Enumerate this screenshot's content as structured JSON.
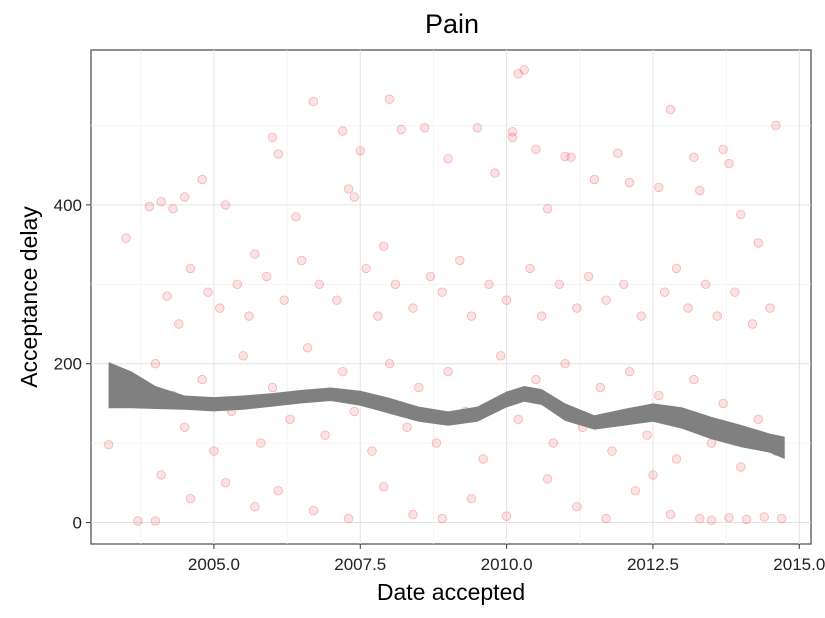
{
  "chart_data": {
    "type": "scatter",
    "title": "Pain",
    "xlabel": "Date accepted",
    "ylabel": "Acceptance delay",
    "xlim": [
      2002.9,
      2015.2
    ],
    "ylim": [
      -27,
      595
    ],
    "x_ticks": [
      2005.0,
      2007.5,
      2010.0,
      2012.5,
      2015.0
    ],
    "x_tick_labels": [
      "2005.0",
      "2007.5",
      "2010.0",
      "2012.5",
      "2015.0"
    ],
    "y_ticks": [
      0,
      200,
      400
    ],
    "y_tick_labels": [
      "0",
      "200",
      "400"
    ],
    "grid": true,
    "legend": "none",
    "point_color": "#e8202a",
    "ribbon_color": "#808080",
    "smooth_band": {
      "x": [
        2003.2,
        2003.6,
        2004.0,
        2004.5,
        2005.0,
        2005.5,
        2006.0,
        2006.5,
        2007.0,
        2007.5,
        2008.0,
        2008.5,
        2009.0,
        2009.5,
        2010.0,
        2010.3,
        2010.6,
        2011.0,
        2011.5,
        2012.0,
        2012.5,
        2013.0,
        2013.5,
        2014.0,
        2014.5,
        2014.75
      ],
      "upper": [
        202,
        190,
        172,
        160,
        158,
        160,
        163,
        167,
        170,
        166,
        157,
        146,
        140,
        146,
        165,
        172,
        168,
        150,
        135,
        143,
        150,
        145,
        133,
        123,
        112,
        108
      ],
      "lower": [
        144,
        144,
        143,
        142,
        140,
        142,
        146,
        150,
        153,
        147,
        137,
        127,
        122,
        127,
        145,
        152,
        148,
        128,
        117,
        122,
        127,
        118,
        105,
        95,
        88,
        80
      ]
    },
    "points": [
      [
        2003.2,
        98
      ],
      [
        2003.5,
        358
      ],
      [
        2003.7,
        2
      ],
      [
        2003.9,
        398
      ],
      [
        2004.0,
        2
      ],
      [
        2004.1,
        404
      ],
      [
        2004.3,
        395
      ],
      [
        2004.5,
        410
      ],
      [
        2004.8,
        432
      ],
      [
        2005.2,
        400
      ],
      [
        2005.7,
        338
      ],
      [
        2006.0,
        485
      ],
      [
        2006.1,
        464
      ],
      [
        2006.4,
        385
      ],
      [
        2006.7,
        530
      ],
      [
        2007.2,
        493
      ],
      [
        2007.3,
        420
      ],
      [
        2007.4,
        410
      ],
      [
        2007.5,
        468
      ],
      [
        2007.9,
        348
      ],
      [
        2008.0,
        533
      ],
      [
        2008.2,
        495
      ],
      [
        2008.6,
        497
      ],
      [
        2009.0,
        458
      ],
      [
        2009.5,
        497
      ],
      [
        2009.8,
        440
      ],
      [
        2010.1,
        492
      ],
      [
        2010.1,
        485
      ],
      [
        2010.2,
        565
      ],
      [
        2010.3,
        570
      ],
      [
        2010.5,
        470
      ],
      [
        2010.7,
        395
      ],
      [
        2011.0,
        461
      ],
      [
        2011.1,
        460
      ],
      [
        2011.5,
        432
      ],
      [
        2011.9,
        465
      ],
      [
        2012.1,
        428
      ],
      [
        2012.6,
        422
      ],
      [
        2012.8,
        520
      ],
      [
        2013.2,
        460
      ],
      [
        2013.3,
        418
      ],
      [
        2013.7,
        470
      ],
      [
        2013.8,
        452
      ],
      [
        2014.0,
        388
      ],
      [
        2014.3,
        352
      ],
      [
        2014.6,
        500
      ],
      [
        2004.2,
        285
      ],
      [
        2004.4,
        250
      ],
      [
        2004.6,
        320
      ],
      [
        2004.9,
        290
      ],
      [
        2005.1,
        270
      ],
      [
        2005.4,
        300
      ],
      [
        2005.6,
        260
      ],
      [
        2005.9,
        310
      ],
      [
        2006.2,
        280
      ],
      [
        2006.5,
        330
      ],
      [
        2006.8,
        300
      ],
      [
        2007.1,
        280
      ],
      [
        2007.6,
        320
      ],
      [
        2007.8,
        260
      ],
      [
        2008.1,
        300
      ],
      [
        2008.4,
        270
      ],
      [
        2008.7,
        310
      ],
      [
        2008.9,
        290
      ],
      [
        2009.2,
        330
      ],
      [
        2009.4,
        260
      ],
      [
        2009.7,
        300
      ],
      [
        2010.0,
        280
      ],
      [
        2010.4,
        320
      ],
      [
        2010.6,
        260
      ],
      [
        2010.9,
        300
      ],
      [
        2011.2,
        270
      ],
      [
        2011.4,
        310
      ],
      [
        2011.7,
        280
      ],
      [
        2012.0,
        300
      ],
      [
        2012.3,
        260
      ],
      [
        2012.7,
        290
      ],
      [
        2012.9,
        320
      ],
      [
        2013.1,
        270
      ],
      [
        2013.4,
        300
      ],
      [
        2013.6,
        260
      ],
      [
        2013.9,
        290
      ],
      [
        2014.2,
        250
      ],
      [
        2014.5,
        270
      ],
      [
        2004.0,
        200
      ],
      [
        2004.3,
        160
      ],
      [
        2004.5,
        120
      ],
      [
        2004.8,
        180
      ],
      [
        2005.0,
        90
      ],
      [
        2005.3,
        140
      ],
      [
        2005.5,
        210
      ],
      [
        2005.8,
        100
      ],
      [
        2006.0,
        170
      ],
      [
        2006.3,
        130
      ],
      [
        2006.6,
        220
      ],
      [
        2006.9,
        110
      ],
      [
        2007.2,
        190
      ],
      [
        2007.4,
        140
      ],
      [
        2007.7,
        90
      ],
      [
        2008.0,
        200
      ],
      [
        2008.3,
        120
      ],
      [
        2008.5,
        170
      ],
      [
        2008.8,
        100
      ],
      [
        2009.0,
        190
      ],
      [
        2009.3,
        140
      ],
      [
        2009.6,
        80
      ],
      [
        2009.9,
        210
      ],
      [
        2010.2,
        130
      ],
      [
        2010.5,
        180
      ],
      [
        2010.8,
        100
      ],
      [
        2011.0,
        200
      ],
      [
        2011.3,
        120
      ],
      [
        2011.6,
        170
      ],
      [
        2011.8,
        90
      ],
      [
        2012.1,
        190
      ],
      [
        2012.4,
        110
      ],
      [
        2012.6,
        160
      ],
      [
        2012.9,
        80
      ],
      [
        2013.2,
        180
      ],
      [
        2013.5,
        100
      ],
      [
        2013.7,
        150
      ],
      [
        2014.0,
        70
      ],
      [
        2014.3,
        130
      ],
      [
        2014.6,
        90
      ],
      [
        2004.1,
        60
      ],
      [
        2004.6,
        30
      ],
      [
        2005.2,
        50
      ],
      [
        2005.7,
        20
      ],
      [
        2006.1,
        40
      ],
      [
        2006.7,
        15
      ],
      [
        2007.3,
        5
      ],
      [
        2007.9,
        45
      ],
      [
        2008.4,
        10
      ],
      [
        2008.9,
        5
      ],
      [
        2009.4,
        30
      ],
      [
        2010.0,
        8
      ],
      [
        2010.7,
        55
      ],
      [
        2011.2,
        20
      ],
      [
        2011.7,
        5
      ],
      [
        2012.2,
        40
      ],
      [
        2012.8,
        10
      ],
      [
        2013.3,
        5
      ],
      [
        2013.5,
        3
      ],
      [
        2013.8,
        6
      ],
      [
        2014.1,
        4
      ],
      [
        2014.4,
        7
      ],
      [
        2014.7,
        5
      ],
      [
        2012.5,
        60
      ]
    ]
  }
}
